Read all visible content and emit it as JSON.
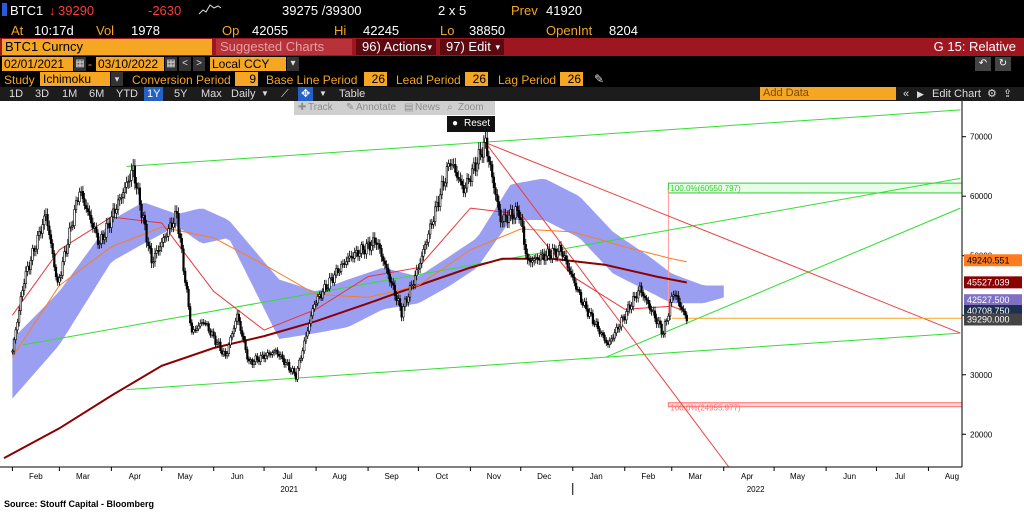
{
  "ticker": {
    "symbol": "BTC1",
    "last": "39290",
    "change": "-2630",
    "bid_ask": "39275 /39300",
    "size": "2 x 5",
    "prev_label": "Prev",
    "prev": "41920",
    "at_label": "At",
    "time": "10:17d",
    "vol_label": "Vol",
    "vol": "1978",
    "op_label": "Op",
    "open": "42055",
    "hi_label": "Hi",
    "high": "42245",
    "lo_label": "Lo",
    "low": "38850",
    "oi_label": "OpenInt",
    "open_interest": "8204"
  },
  "security_bar": {
    "security": "BTC1 Curncy",
    "suggested": "Suggested Charts",
    "actions": "96) Actions",
    "edit": "97) Edit",
    "graph_title": "G 15: Relative"
  },
  "date_range": {
    "start": "02/01/2021",
    "end": "03/10/2022",
    "currency": "Local CCY"
  },
  "study": {
    "label": "Study",
    "name": "Ichimoku",
    "conversion_label": "Conversion Period",
    "conversion": "9",
    "base_label": "Base Line Period",
    "base": "26",
    "lead_label": "Lead Period",
    "lead": "26",
    "lag_label": "Lag Period",
    "lag": "26"
  },
  "toolbar": {
    "periods": [
      "1D",
      "3D",
      "1M",
      "6M",
      "YTD",
      "1Y",
      "5Y",
      "Max"
    ],
    "selected_period": "1Y",
    "frequency": "Daily",
    "table": "Table",
    "add_data": "Add Data",
    "edit_chart": "Edit Chart"
  },
  "popup": {
    "track": "Track",
    "annotate": "Annotate",
    "news": "News",
    "zoom": "Zoom",
    "reset": "Reset"
  },
  "colors": {
    "cloud": "#8a8ef0",
    "price": "#000000",
    "ma_long": "#8b0000",
    "ma_mid": "#ff7b1f",
    "ma_short": "#e8333a",
    "trend_green": "#33dd33",
    "trend_red": "#e84040",
    "accent": "#f5a623",
    "header_red": "#9e1620"
  },
  "chart_data": {
    "type": "candlestick",
    "title": "BTC1 Curncy",
    "y_axis_position": "right",
    "ylim": [
      14500,
      76000
    ],
    "y_ticks": [
      20000,
      30000,
      40000,
      50000,
      60000,
      70000
    ],
    "x_month_labels": [
      "Feb",
      "Mar",
      "Apr",
      "May",
      "Jun",
      "Jul",
      "Aug",
      "Sep",
      "Oct",
      "Nov",
      "Dec",
      "Jan",
      "Feb",
      "Mar",
      "Apr",
      "May",
      "Jun",
      "Jul",
      "Aug"
    ],
    "x_year_labels": [
      "2021",
      "2022"
    ],
    "grid": false,
    "price_anchors": [
      [
        "2021-02-01",
        34000
      ],
      [
        "2021-02-08",
        46000
      ],
      [
        "2021-02-21",
        57000
      ],
      [
        "2021-02-28",
        45000
      ],
      [
        "2021-03-13",
        61000
      ],
      [
        "2021-03-25",
        52000
      ],
      [
        "2021-04-14",
        64500
      ],
      [
        "2021-04-25",
        49000
      ],
      [
        "2021-05-10",
        57000
      ],
      [
        "2021-05-19",
        37000
      ],
      [
        "2021-05-26",
        39000
      ],
      [
        "2021-06-08",
        33000
      ],
      [
        "2021-06-15",
        40000
      ],
      [
        "2021-06-22",
        32000
      ],
      [
        "2021-07-08",
        34000
      ],
      [
        "2021-07-20",
        29800
      ],
      [
        "2021-07-31",
        42000
      ],
      [
        "2021-08-14",
        47500
      ],
      [
        "2021-08-20",
        49500
      ],
      [
        "2021-09-06",
        52500
      ],
      [
        "2021-09-21",
        40500
      ],
      [
        "2021-10-01",
        48000
      ],
      [
        "2021-10-20",
        66000
      ],
      [
        "2021-10-28",
        61000
      ],
      [
        "2021-11-10",
        69000
      ],
      [
        "2021-11-19",
        56000
      ],
      [
        "2021-11-30",
        57500
      ],
      [
        "2021-12-05",
        49000
      ],
      [
        "2021-12-25",
        51000
      ],
      [
        "2022-01-07",
        42000
      ],
      [
        "2022-01-22",
        35000
      ],
      [
        "2022-02-10",
        44500
      ],
      [
        "2022-02-24",
        37000
      ],
      [
        "2022-03-02",
        44000
      ],
      [
        "2022-03-10",
        39290
      ]
    ],
    "cloud": [
      {
        "date": "2021-02-01",
        "span_a": 36000,
        "span_b": 26000
      },
      {
        "date": "2021-03-01",
        "span_a": 44000,
        "span_b": 35000
      },
      {
        "date": "2021-04-01",
        "span_a": 56000,
        "span_b": 49000
      },
      {
        "date": "2021-04-20",
        "span_a": 59000,
        "span_b": 52000
      },
      {
        "date": "2021-05-10",
        "span_a": 57000,
        "span_b": 55000
      },
      {
        "date": "2021-05-25",
        "span_a": 58000,
        "span_b": 52000
      },
      {
        "date": "2021-06-10",
        "span_a": 56000,
        "span_b": 53000
      },
      {
        "date": "2021-07-10",
        "span_a": 46000,
        "span_b": 36000
      },
      {
        "date": "2021-08-01",
        "span_a": 44000,
        "span_b": 37000
      },
      {
        "date": "2021-08-20",
        "span_a": 46000,
        "span_b": 38000
      },
      {
        "date": "2021-09-10",
        "span_a": 48000,
        "span_b": 41000
      },
      {
        "date": "2021-10-01",
        "span_a": 46500,
        "span_b": 42000
      },
      {
        "date": "2021-10-20",
        "span_a": 50000,
        "span_b": 45000
      },
      {
        "date": "2021-11-05",
        "span_a": 53000,
        "span_b": 48000
      },
      {
        "date": "2021-11-25",
        "span_a": 62000,
        "span_b": 56000
      },
      {
        "date": "2021-12-15",
        "span_a": 63000,
        "span_b": 56000
      },
      {
        "date": "2022-01-05",
        "span_a": 60000,
        "span_b": 53000
      },
      {
        "date": "2022-01-25",
        "span_a": 54000,
        "span_b": 47000
      },
      {
        "date": "2022-02-15",
        "span_a": 50000,
        "span_b": 44000
      },
      {
        "date": "2022-03-01",
        "span_a": 47000,
        "span_b": 42000
      },
      {
        "date": "2022-03-20",
        "span_a": 45000,
        "span_b": 42000
      },
      {
        "date": "2022-04-01",
        "span_a": 45000,
        "span_b": 43000
      }
    ],
    "moving_averages": [
      {
        "color": "#8b0000",
        "points": [
          [
            "2021-01-27",
            16000
          ],
          [
            "2021-03-01",
            21000
          ],
          [
            "2021-04-01",
            26500
          ],
          [
            "2021-05-01",
            31500
          ],
          [
            "2021-06-01",
            34500
          ],
          [
            "2021-07-01",
            36500
          ],
          [
            "2021-08-01",
            39000
          ],
          [
            "2021-09-01",
            42000
          ],
          [
            "2021-10-01",
            45000
          ],
          [
            "2021-11-01",
            48000
          ],
          [
            "2021-11-20",
            49500
          ],
          [
            "2021-12-20",
            49500
          ],
          [
            "2022-01-20",
            48500
          ],
          [
            "2022-02-20",
            46500
          ],
          [
            "2022-03-10",
            45500
          ]
        ]
      },
      {
        "color": "#ff7b1f",
        "points": [
          [
            "2021-02-01",
            33000
          ],
          [
            "2021-03-01",
            45000
          ],
          [
            "2021-04-01",
            51500
          ],
          [
            "2021-05-01",
            54800
          ],
          [
            "2021-06-01",
            53000
          ],
          [
            "2021-07-01",
            48500
          ],
          [
            "2021-08-01",
            43500
          ],
          [
            "2021-09-01",
            43000
          ],
          [
            "2021-10-01",
            45000
          ],
          [
            "2021-11-01",
            51000
          ],
          [
            "2021-12-01",
            54500
          ],
          [
            "2022-01-01",
            54000
          ],
          [
            "2022-02-01",
            51500
          ],
          [
            "2022-03-01",
            49500
          ],
          [
            "2022-03-10",
            49000
          ]
        ]
      },
      {
        "color": "#e8333a",
        "points": [
          [
            "2021-02-01",
            40000
          ],
          [
            "2021-03-01",
            51000
          ],
          [
            "2021-04-01",
            56500
          ],
          [
            "2021-05-01",
            55500
          ],
          [
            "2021-06-01",
            44000
          ],
          [
            "2021-07-01",
            37500
          ],
          [
            "2021-08-01",
            41000
          ],
          [
            "2021-09-01",
            46500
          ],
          [
            "2021-10-01",
            48000
          ],
          [
            "2021-11-01",
            58000
          ],
          [
            "2021-12-01",
            57000
          ],
          [
            "2022-01-01",
            46500
          ],
          [
            "2022-02-01",
            41000
          ],
          [
            "2022-03-01",
            41500
          ],
          [
            "2022-03-10",
            40600
          ]
        ]
      }
    ],
    "trend_lines": [
      {
        "color": "#33dd33",
        "from": [
          "2021-02-07",
          35000
        ],
        "to": [
          "2022-08-20",
          63000
        ]
      },
      {
        "color": "#33dd33",
        "from": [
          "2021-04-10",
          65000
        ],
        "to": [
          "2022-08-20",
          74500
        ]
      },
      {
        "color": "#33dd33",
        "from": [
          "2021-04-10",
          27500
        ],
        "to": [
          "2022-08-20",
          37000
        ]
      },
      {
        "color": "#33dd33",
        "from": [
          "2022-01-21",
          33000
        ],
        "to": [
          "2022-08-20",
          58000
        ]
      },
      {
        "color": "#e84040",
        "from": [
          "2021-11-10",
          69000
        ],
        "to": [
          "2022-04-04",
          14500
        ]
      },
      {
        "color": "#e84040",
        "from": [
          "2021-11-10",
          69000
        ],
        "to": [
          "2022-08-20",
          37000
        ]
      }
    ],
    "retracement_boxes": [
      {
        "label": "100.0%(60550.797)",
        "value": 60550.797,
        "top": 62200,
        "color": "#33cc33",
        "fill": "#e6ffe6"
      },
      {
        "label": "100.0%(24955.977)",
        "value": 24955.977,
        "top": 25300,
        "color": "#ff6f6f",
        "fill": "#ffd5d5"
      }
    ],
    "level_line": {
      "value": 39500,
      "color": "#f5a623"
    },
    "right_labels": [
      {
        "text": "49240.551",
        "value": 49240.551,
        "bg": "#ff7b1f",
        "fg": "#000000"
      },
      {
        "text": "45527.039",
        "value": 45527.039,
        "bg": "#8b0000",
        "fg": "#ffffff"
      },
      {
        "text": "42527.500",
        "value": 42527.5,
        "bg": "#7f70c4",
        "fg": "#ffffff"
      },
      {
        "text": "40708.750",
        "value": 40708.75,
        "bg": "#1f2f4f",
        "fg": "#ffffff"
      },
      {
        "text": "39290.000",
        "value": 39290,
        "bg": "#444444",
        "fg": "#ffffff"
      }
    ],
    "source": "Source: Stouff Capital - Bloomberg"
  }
}
